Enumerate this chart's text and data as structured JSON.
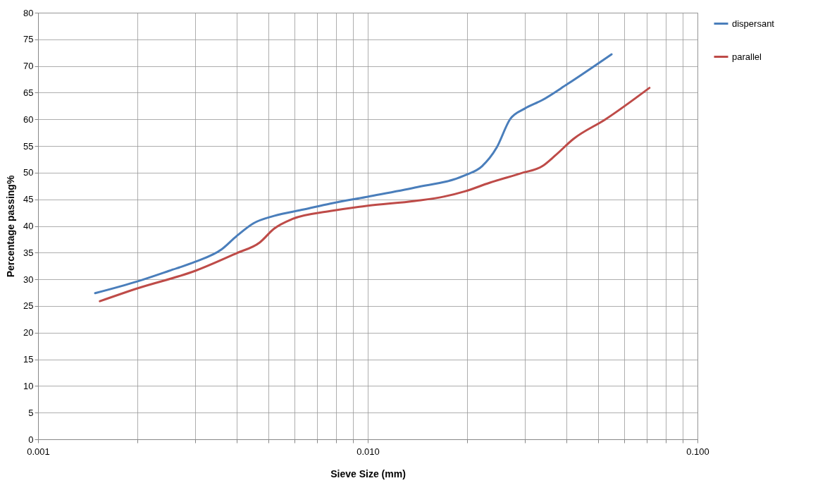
{
  "chart_data": {
    "type": "line",
    "xlabel": "Sieve Size (mm)",
    "ylabel": "Percentage passing%",
    "log": "x",
    "grid": true,
    "legend": "right",
    "marker": "none",
    "line_style": "solid",
    "xlim": [
      0.001,
      0.1
    ],
    "ylim": [
      0,
      80
    ],
    "xticks": [
      {
        "value": 0.001,
        "label": "0.001"
      },
      {
        "value": 0.002,
        "label": null
      },
      {
        "value": 0.003,
        "label": null
      },
      {
        "value": 0.004,
        "label": null
      },
      {
        "value": 0.005,
        "label": null
      },
      {
        "value": 0.006,
        "label": null
      },
      {
        "value": 0.007,
        "label": null
      },
      {
        "value": 0.008,
        "label": null
      },
      {
        "value": 0.009,
        "label": null
      },
      {
        "value": 0.01,
        "label": "0.010"
      },
      {
        "value": 0.02,
        "label": null
      },
      {
        "value": 0.03,
        "label": null
      },
      {
        "value": 0.04,
        "label": null
      },
      {
        "value": 0.05,
        "label": null
      },
      {
        "value": 0.06,
        "label": null
      },
      {
        "value": 0.07,
        "label": null
      },
      {
        "value": 0.08,
        "label": null
      },
      {
        "value": 0.09,
        "label": null
      },
      {
        "value": 0.1,
        "label": "0.100"
      }
    ],
    "yticks": [
      0,
      5,
      10,
      15,
      20,
      25,
      30,
      35,
      40,
      45,
      50,
      55,
      60,
      65,
      70,
      75,
      80
    ],
    "series": [
      {
        "name": "dispersant",
        "color": "#4a7ebb",
        "x": [
          0.00149,
          0.002,
          0.0025,
          0.003,
          0.0036,
          0.004,
          0.0045,
          0.0052,
          0.0064,
          0.0077,
          0.01,
          0.0139,
          0.0197,
          0.0222,
          0.0246,
          0.027,
          0.0299,
          0.0338,
          0.0403,
          0.0549
        ],
        "values": [
          27.4,
          29.6,
          31.6,
          33.3,
          35.6,
          38.1,
          40.5,
          41.9,
          43.1,
          44.2,
          45.5,
          47.2,
          49.5,
          51.2,
          54.7,
          60.0,
          62.0,
          63.6,
          66.6,
          72.2
        ]
      },
      {
        "name": "parallel",
        "color": "#be4b48",
        "x": [
          0.00154,
          0.002,
          0.003,
          0.004,
          0.0047,
          0.0052,
          0.0059,
          0.0077,
          0.01,
          0.0139,
          0.017,
          0.0197,
          0.0234,
          0.0292,
          0.0338,
          0.037,
          0.042,
          0.0526,
          0.0715
        ],
        "values": [
          25.9,
          28.3,
          31.6,
          34.9,
          36.9,
          39.5,
          41.3,
          42.8,
          43.8,
          44.7,
          45.5,
          46.5,
          48.1,
          49.9,
          51.2,
          53.2,
          56.3,
          60.0,
          65.9
        ]
      }
    ]
  }
}
